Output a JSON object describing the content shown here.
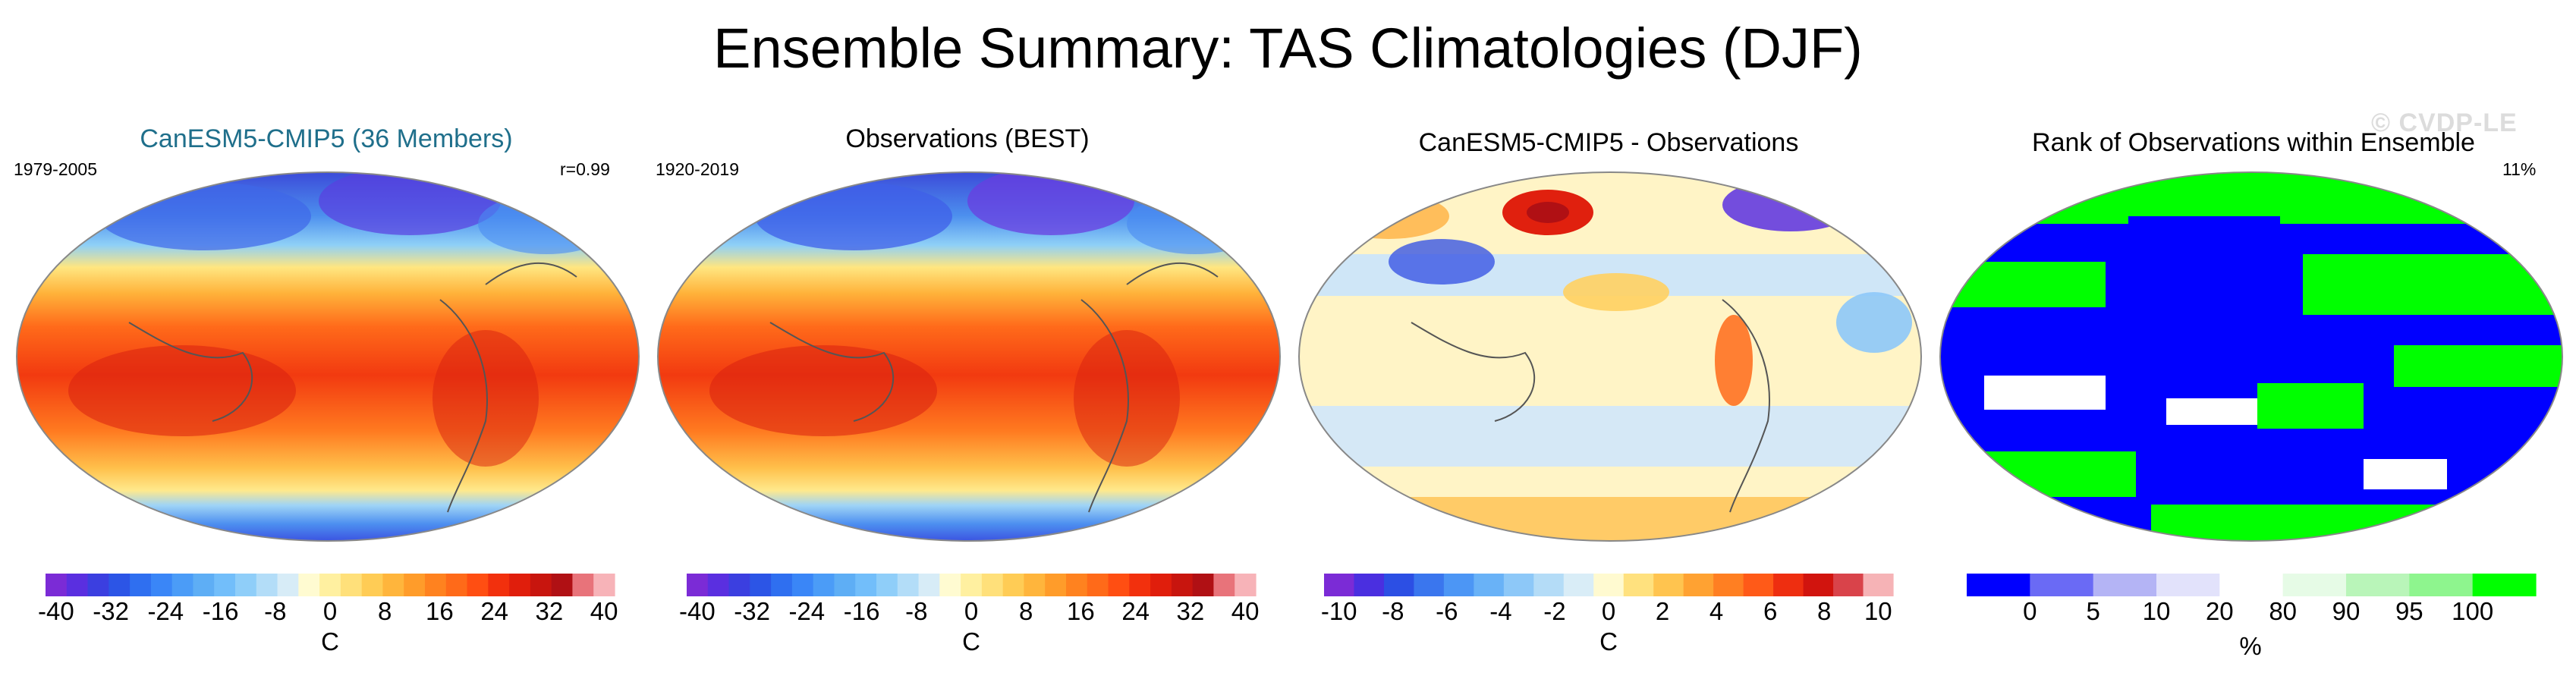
{
  "title": "Ensemble Summary: TAS Climatologies (DJF)",
  "watermark": "© CVDP-LE",
  "panels": [
    {
      "title": "CanESM5-CMIP5 (36 Members)",
      "title_color": "#1f6f8b",
      "left_label": "1979-2005",
      "right_label": "r=0.99",
      "map_type": "temperature",
      "colorbar": {
        "unit": "C",
        "tick_labels": [
          "-40",
          "-32",
          "-24",
          "-16",
          "-8",
          "0",
          "8",
          "16",
          "24",
          "32",
          "40"
        ],
        "colors": [
          "#7b2bd6",
          "#5a2fe0",
          "#3b3fe0",
          "#2c55e6",
          "#2f6ff0",
          "#3a86f7",
          "#4b9cf7",
          "#5eaef5",
          "#72befa",
          "#8fcef9",
          "#b3ddf8",
          "#d7ecf7",
          "#fffbd1",
          "#fff0a0",
          "#ffe07a",
          "#ffcc55",
          "#ffb53c",
          "#ff9c2a",
          "#ff821f",
          "#ff6a19",
          "#ff4e12",
          "#f2300d",
          "#e01e0c",
          "#c8150e",
          "#b01014",
          "#e8737a",
          "#f7b3b8"
        ]
      }
    },
    {
      "title": "Observations (BEST)",
      "title_color": "#000000",
      "left_label": "1920-2019",
      "right_label": "",
      "map_type": "temperature",
      "colorbar": {
        "unit": "C",
        "tick_labels": [
          "-40",
          "-32",
          "-24",
          "-16",
          "-8",
          "0",
          "8",
          "16",
          "24",
          "32",
          "40"
        ],
        "colors": [
          "#7b2bd6",
          "#5a2fe0",
          "#3b3fe0",
          "#2c55e6",
          "#2f6ff0",
          "#3a86f7",
          "#4b9cf7",
          "#5eaef5",
          "#72befa",
          "#8fcef9",
          "#b3ddf8",
          "#d7ecf7",
          "#fffbd1",
          "#fff0a0",
          "#ffe07a",
          "#ffcc55",
          "#ffb53c",
          "#ff9c2a",
          "#ff821f",
          "#ff6a19",
          "#ff4e12",
          "#f2300d",
          "#e01e0c",
          "#c8150e",
          "#b01014",
          "#e8737a",
          "#f7b3b8"
        ]
      }
    },
    {
      "title": "CanESM5-CMIP5 - Observations",
      "title_color": "#000000",
      "left_label": "",
      "right_label": "",
      "map_type": "difference",
      "colorbar": {
        "unit": "C",
        "tick_labels": [
          "-10",
          "-8",
          "-6",
          "-4",
          "-2",
          "0",
          "2",
          "4",
          "6",
          "8",
          "10"
        ],
        "colors": [
          "#7b2bd6",
          "#4a2fe0",
          "#2c4fe4",
          "#3a76ee",
          "#4c96f5",
          "#69b2f7",
          "#8dc8f8",
          "#b4dcf7",
          "#d9edf7",
          "#fffad0",
          "#ffe17e",
          "#ffc44f",
          "#ffa232",
          "#ff7f22",
          "#ff5a18",
          "#ee2e10",
          "#d1140e",
          "#d9434a",
          "#f6b3b6"
        ]
      }
    },
    {
      "title": "Rank of Observations within Ensemble",
      "title_color": "#000000",
      "left_label": "",
      "right_label": "11%",
      "map_type": "rank",
      "colorbar": {
        "unit": "%",
        "tick_labels": [
          "0",
          "5",
          "10",
          "20",
          "80",
          "90",
          "95",
          "100"
        ],
        "colors": [
          "#0000ff",
          "#6a6af5",
          "#b4b4f5",
          "#e2e2fb",
          "#ffffff",
          "#e6fbe6",
          "#b9f5b9",
          "#8ef58e",
          "#00ff00"
        ]
      }
    }
  ]
}
